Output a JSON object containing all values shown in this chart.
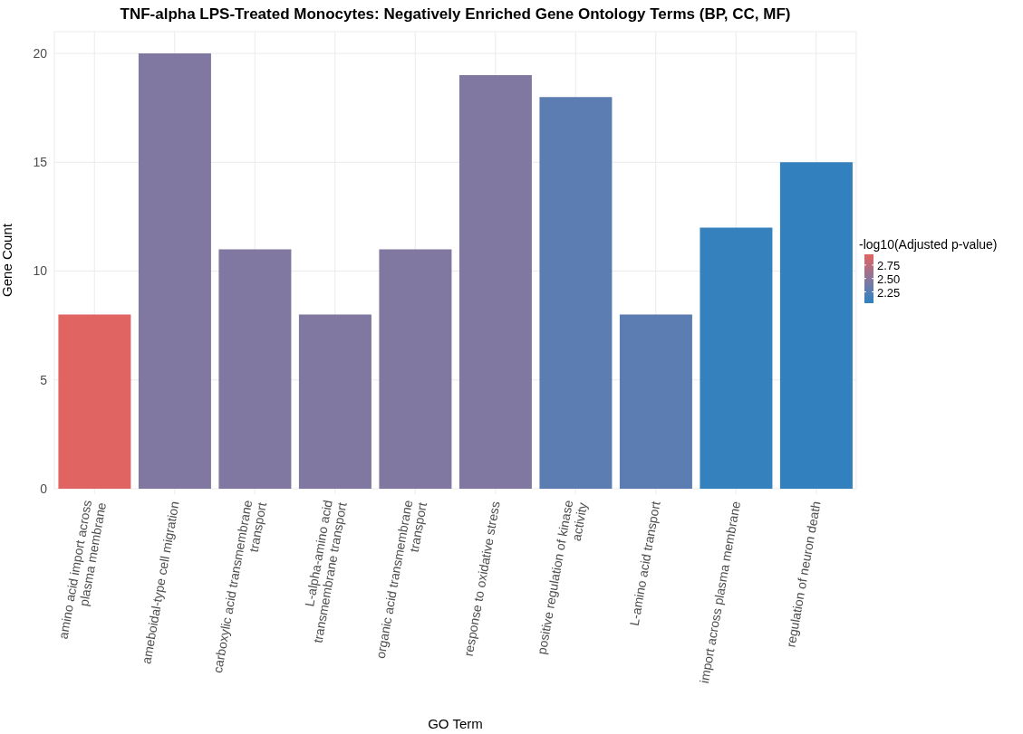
{
  "chart_data": {
    "type": "bar",
    "title": "TNF-alpha LPS-Treated Monocytes: Negatively Enriched Gene Ontology Terms (BP, CC, MF)",
    "xlabel": "GO Term",
    "ylabel": "Gene Count",
    "clabel": "-log10(Adjusted p-value)",
    "categories": [
      "amino acid import across plasma membrane",
      "ameboidal-type cell migration",
      "carboxylic acid transmembrane transport",
      "L-alpha-amino acid transmembrane transport",
      "organic acid transmembrane transport",
      "response to oxidative stress",
      "positive regulation of kinase activity",
      "L-amino acid transport",
      "import across plasma membrane",
      "regulation of neuron death"
    ],
    "values": [
      8,
      20,
      11,
      8,
      11,
      19,
      18,
      8,
      12,
      15
    ],
    "cvalues": [
      2.94,
      2.45,
      2.45,
      2.45,
      2.45,
      2.45,
      2.27,
      2.27,
      2.07,
      2.05
    ],
    "colors": [
      "#e06462",
      "#8078a0",
      "#8078a0",
      "#8078a0",
      "#8078a0",
      "#8078a0",
      "#5c7db2",
      "#5c7db2",
      "#3481be",
      "#3280be"
    ],
    "clim": [
      2.04,
      2.95
    ],
    "cticks": [
      2.25,
      {
        "value": 2.5,
        "label": "2.50"
      },
      2.75
    ],
    "ylim": [
      0,
      21
    ],
    "yticks": [
      0,
      5,
      10,
      15,
      20
    ],
    "grid": true
  }
}
